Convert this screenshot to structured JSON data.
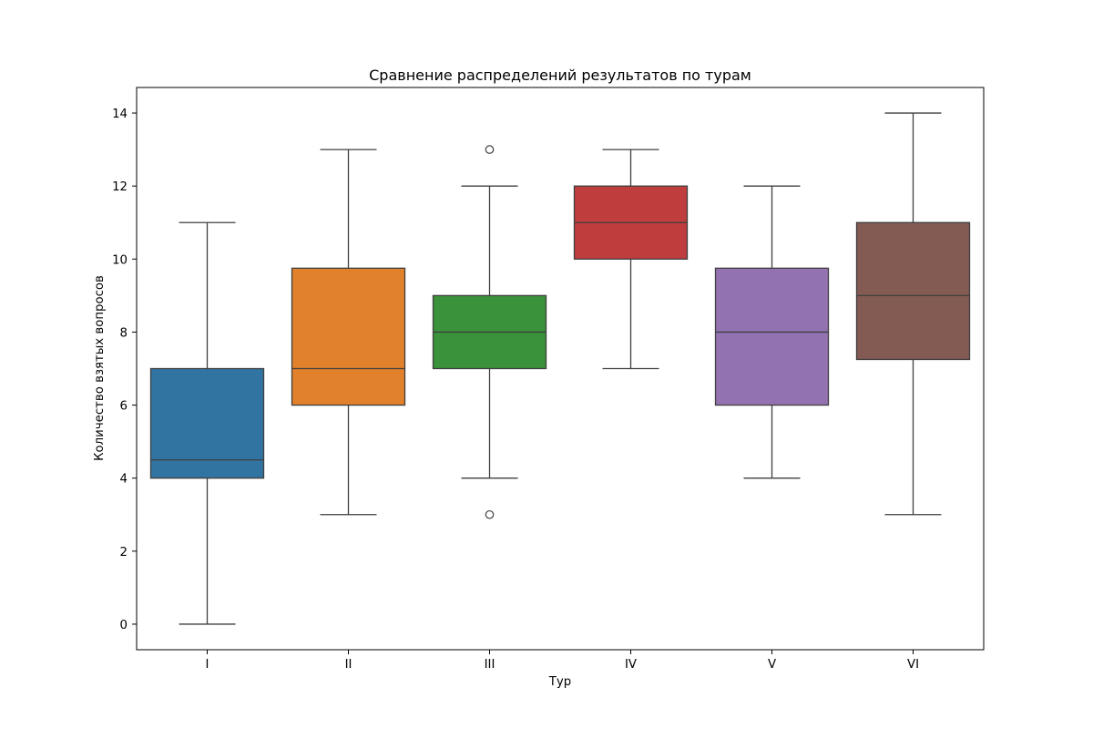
{
  "chart_data": {
    "type": "box",
    "title": "Сравнение распределений результатов по турам",
    "xlabel": "Тур",
    "ylabel": "Количество взятых вопросов",
    "ylim": [
      -0.7,
      14.7
    ],
    "yticks": [
      0,
      2,
      4,
      6,
      8,
      10,
      12,
      14
    ],
    "grid": false,
    "categories": [
      "I",
      "II",
      "III",
      "IV",
      "V",
      "VI"
    ],
    "boxes": [
      {
        "category": "I",
        "whisker_low": 0,
        "q1": 4,
        "median": 4.5,
        "q3": 7,
        "whisker_high": 11,
        "outliers": [],
        "color": "#3274a1"
      },
      {
        "category": "II",
        "whisker_low": 3,
        "q1": 6,
        "median": 7,
        "q3": 9.75,
        "whisker_high": 13,
        "outliers": [],
        "color": "#e1812c"
      },
      {
        "category": "III",
        "whisker_low": 4,
        "q1": 7,
        "median": 8,
        "q3": 9,
        "whisker_high": 12,
        "outliers": [
          13,
          3
        ],
        "color": "#3a923a"
      },
      {
        "category": "IV",
        "whisker_low": 7,
        "q1": 10,
        "median": 11,
        "q3": 12,
        "whisker_high": 13,
        "outliers": [],
        "color": "#c03d3e"
      },
      {
        "category": "V",
        "whisker_low": 4,
        "q1": 6,
        "median": 8,
        "q3": 9.75,
        "whisker_high": 12,
        "outliers": [],
        "color": "#9372b2"
      },
      {
        "category": "VI",
        "whisker_low": 3,
        "q1": 7.25,
        "median": 9,
        "q3": 11,
        "whisker_high": 14,
        "outliers": [],
        "color": "#845b53"
      }
    ]
  }
}
